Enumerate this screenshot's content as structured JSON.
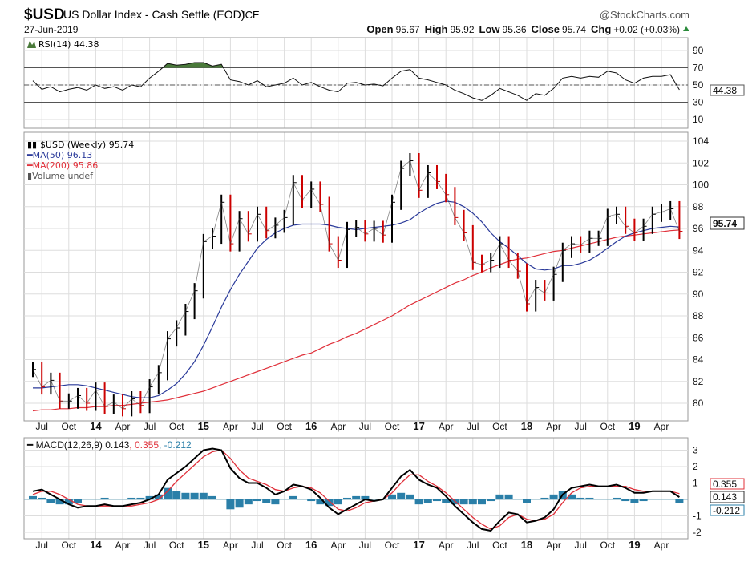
{
  "header": {
    "symbol": "$USD",
    "name": "US Dollar Index - Cash Settle (EOD)",
    "exchange": "ICE",
    "date": "27-Jun-2019",
    "brand": "@StockCharts.com",
    "open_label": "Open",
    "open": "95.67",
    "high_label": "High",
    "high": "95.92",
    "low_label": "Low",
    "low": "95.36",
    "close_label": "Close",
    "close": "95.74",
    "chg_label": "Chg",
    "chg": "+0.02 (+0.03%)"
  },
  "colors": {
    "price_up": "#000000",
    "price_down": "#cc0000",
    "ma50": "#2a3a9a",
    "ma200": "#e0303a",
    "rsi_fill": "#4a7a3a",
    "macd": "#000000",
    "signal": "#e0303a",
    "hist": "#2a7fa8"
  },
  "chart_data": [
    {
      "type": "line",
      "title": "RSI(14) 44.38",
      "legend": "RSI(14) 44.38",
      "last_label": "44.38",
      "ylim": [
        10,
        90
      ],
      "yticks": [
        "90",
        "70",
        "50",
        "30",
        "10"
      ],
      "ytick_values": [
        90,
        70,
        50,
        30,
        10
      ],
      "values": [
        55,
        45,
        48,
        42,
        45,
        47,
        44,
        50,
        46,
        48,
        44,
        50,
        48,
        58,
        66,
        75,
        73,
        74,
        76,
        76,
        72,
        74,
        56,
        54,
        50,
        55,
        48,
        50,
        52,
        58,
        50,
        53,
        48,
        44,
        42,
        52,
        53,
        50,
        51,
        49,
        58,
        66,
        68,
        58,
        56,
        53,
        50,
        44,
        40,
        35,
        32,
        38,
        46,
        42,
        38,
        32,
        40,
        38,
        46,
        58,
        60,
        58,
        60,
        59,
        66,
        64,
        56,
        52,
        58,
        60,
        60,
        62,
        44.38
      ]
    },
    {
      "type": "ohlc",
      "title": "$USD (Weekly) 95.74",
      "legend": [
        "$USD (Weekly) 95.74",
        "MA(50) 96.13",
        "MA(200) 95.86",
        "Volume undef"
      ],
      "last_label": "95.74",
      "ylim": [
        79,
        105
      ],
      "yticks": [
        "104",
        "102",
        "100",
        "98",
        "96",
        "94",
        "92",
        "90",
        "88",
        "86",
        "84",
        "82",
        "80"
      ],
      "ytick_values": [
        104,
        102,
        100,
        98,
        96,
        94,
        92,
        90,
        88,
        86,
        84,
        82,
        80
      ],
      "x_start": "Jun 2013",
      "x_step": "month",
      "close": [
        83.1,
        81.5,
        82.1,
        80.2,
        80.2,
        80.7,
        80.0,
        81.2,
        79.7,
        80.1,
        79.5,
        80.4,
        79.8,
        81.5,
        82.8,
        85.9,
        86.9,
        88.4,
        90.3,
        94.8,
        95.3,
        98.4,
        94.6,
        96.9,
        95.5,
        97.3,
        95.8,
        96.3,
        97.0,
        100.2,
        98.6,
        99.6,
        98.2,
        94.6,
        93.1,
        95.9,
        96.1,
        95.5,
        96.0,
        95.4,
        98.4,
        101.5,
        102.2,
        99.5,
        101.1,
        100.3,
        99.1,
        97.0,
        95.6,
        92.9,
        92.7,
        93.1,
        94.6,
        93.1,
        92.1,
        89.1,
        90.6,
        90.1,
        91.8,
        94.0,
        94.6,
        94.5,
        95.1,
        95.1,
        97.1,
        97.3,
        96.2,
        95.6,
        96.2,
        97.3,
        97.5,
        97.8,
        95.74
      ],
      "ma50": [
        81.4,
        81.4,
        81.5,
        81.6,
        81.7,
        81.7,
        81.6,
        81.4,
        81.2,
        81.0,
        80.8,
        80.6,
        80.5,
        80.5,
        80.7,
        81.2,
        81.8,
        82.7,
        83.8,
        85.3,
        87.0,
        88.8,
        90.4,
        91.8,
        93.0,
        94.2,
        95.0,
        95.6,
        96.0,
        96.3,
        96.4,
        96.4,
        96.4,
        96.3,
        96.1,
        96.0,
        95.9,
        96.0,
        96.1,
        96.2,
        96.3,
        96.5,
        96.8,
        97.4,
        97.9,
        98.3,
        98.5,
        98.4,
        98.0,
        97.4,
        96.6,
        95.6,
        94.8,
        94.2,
        93.5,
        92.8,
        92.3,
        92.2,
        92.3,
        92.6,
        92.6,
        92.8,
        93.1,
        93.6,
        94.2,
        94.8,
        95.3,
        95.6,
        95.8,
        96.0,
        96.1,
        96.2,
        96.13
      ],
      "ma200": [
        79.3,
        79.4,
        79.4,
        79.5,
        79.5,
        79.6,
        79.6,
        79.7,
        79.7,
        79.8,
        79.8,
        79.9,
        80.0,
        80.1,
        80.2,
        80.3,
        80.5,
        80.7,
        80.9,
        81.1,
        81.4,
        81.7,
        82.0,
        82.3,
        82.6,
        82.9,
        83.2,
        83.5,
        83.8,
        84.1,
        84.4,
        84.6,
        85.0,
        85.4,
        85.7,
        86.1,
        86.4,
        86.8,
        87.2,
        87.6,
        88.0,
        88.5,
        89.0,
        89.4,
        89.8,
        90.2,
        90.6,
        91.0,
        91.3,
        91.7,
        92.0,
        92.4,
        92.7,
        93.0,
        93.2,
        93.3,
        93.5,
        93.7,
        93.9,
        94.0,
        94.2,
        94.4,
        94.6,
        94.8,
        95.0,
        95.2,
        95.3,
        95.4,
        95.5,
        95.6,
        95.7,
        95.8,
        95.86
      ]
    },
    {
      "type": "line",
      "title": "MACD(12,26,9)",
      "legend_parts": [
        "MACD(12,26,9) 0.143",
        ", 0.355",
        ", -0.212"
      ],
      "last_labels": [
        "0.355",
        "0.143",
        "-0.212"
      ],
      "ylim": [
        -2.4,
        3.6
      ],
      "yticks": [
        "3",
        "2",
        "1",
        "-1",
        "-2"
      ],
      "ytick_values": [
        3,
        2,
        1,
        -1,
        -2
      ],
      "macd": [
        0.5,
        0.6,
        0.3,
        0,
        -0.3,
        -0.5,
        -0.4,
        -0.4,
        -0.3,
        -0.4,
        -0.4,
        -0.3,
        -0.2,
        0,
        0.3,
        1.2,
        1.6,
        2.0,
        2.5,
        3.0,
        3.1,
        3.0,
        1.9,
        1.3,
        1.0,
        1.0,
        0.7,
        0.3,
        0.5,
        0.9,
        0.8,
        0.6,
        0.1,
        -0.5,
        -0.9,
        -0.6,
        -0.3,
        0,
        -0.1,
        0,
        0.7,
        1.4,
        1.8,
        1.2,
        0.9,
        0.7,
        0.2,
        -0.4,
        -0.9,
        -1.4,
        -1.8,
        -1.9,
        -1.3,
        -0.8,
        -0.9,
        -1.4,
        -1.3,
        -1.1,
        -0.6,
        0.3,
        0.7,
        0.8,
        0.9,
        0.8,
        0.8,
        0.9,
        0.7,
        0.4,
        0.4,
        0.5,
        0.5,
        0.5,
        0.143
      ],
      "signal": [
        0.3,
        0.5,
        0.5,
        0.3,
        0,
        -0.3,
        -0.4,
        -0.4,
        -0.4,
        -0.4,
        -0.4,
        -0.4,
        -0.3,
        -0.2,
        0,
        0.5,
        1.1,
        1.6,
        2.1,
        2.6,
        2.9,
        3.0,
        2.5,
        1.8,
        1.3,
        1.1,
        0.9,
        0.6,
        0.5,
        0.7,
        0.8,
        0.7,
        0.4,
        -0.1,
        -0.6,
        -0.7,
        -0.5,
        -0.2,
        -0.1,
        0,
        0.4,
        1.0,
        1.5,
        1.5,
        1.1,
        0.8,
        0.4,
        -0.1,
        -0.6,
        -1.1,
        -1.5,
        -1.8,
        -1.6,
        -1.1,
        -0.9,
        -1.2,
        -1.3,
        -1.2,
        -0.9,
        -0.2,
        0.4,
        0.7,
        0.8,
        0.8,
        0.8,
        0.8,
        0.8,
        0.6,
        0.5,
        0.5,
        0.5,
        0.5,
        0.355
      ]
    }
  ],
  "x_axis": {
    "labels": [
      "Jul",
      "Oct",
      "14",
      "Apr",
      "Jul",
      "Oct",
      "15",
      "Apr",
      "Jul",
      "Oct",
      "16",
      "Apr",
      "Jul",
      "Oct",
      "17",
      "Apr",
      "Jul",
      "Oct",
      "18",
      "Apr",
      "Jul",
      "Oct",
      "19",
      "Apr"
    ],
    "month_index": [
      1,
      4,
      7,
      10,
      13,
      16,
      19,
      22,
      25,
      28,
      31,
      34,
      37,
      40,
      43,
      46,
      49,
      52,
      55,
      58,
      61,
      64,
      67,
      70
    ]
  }
}
